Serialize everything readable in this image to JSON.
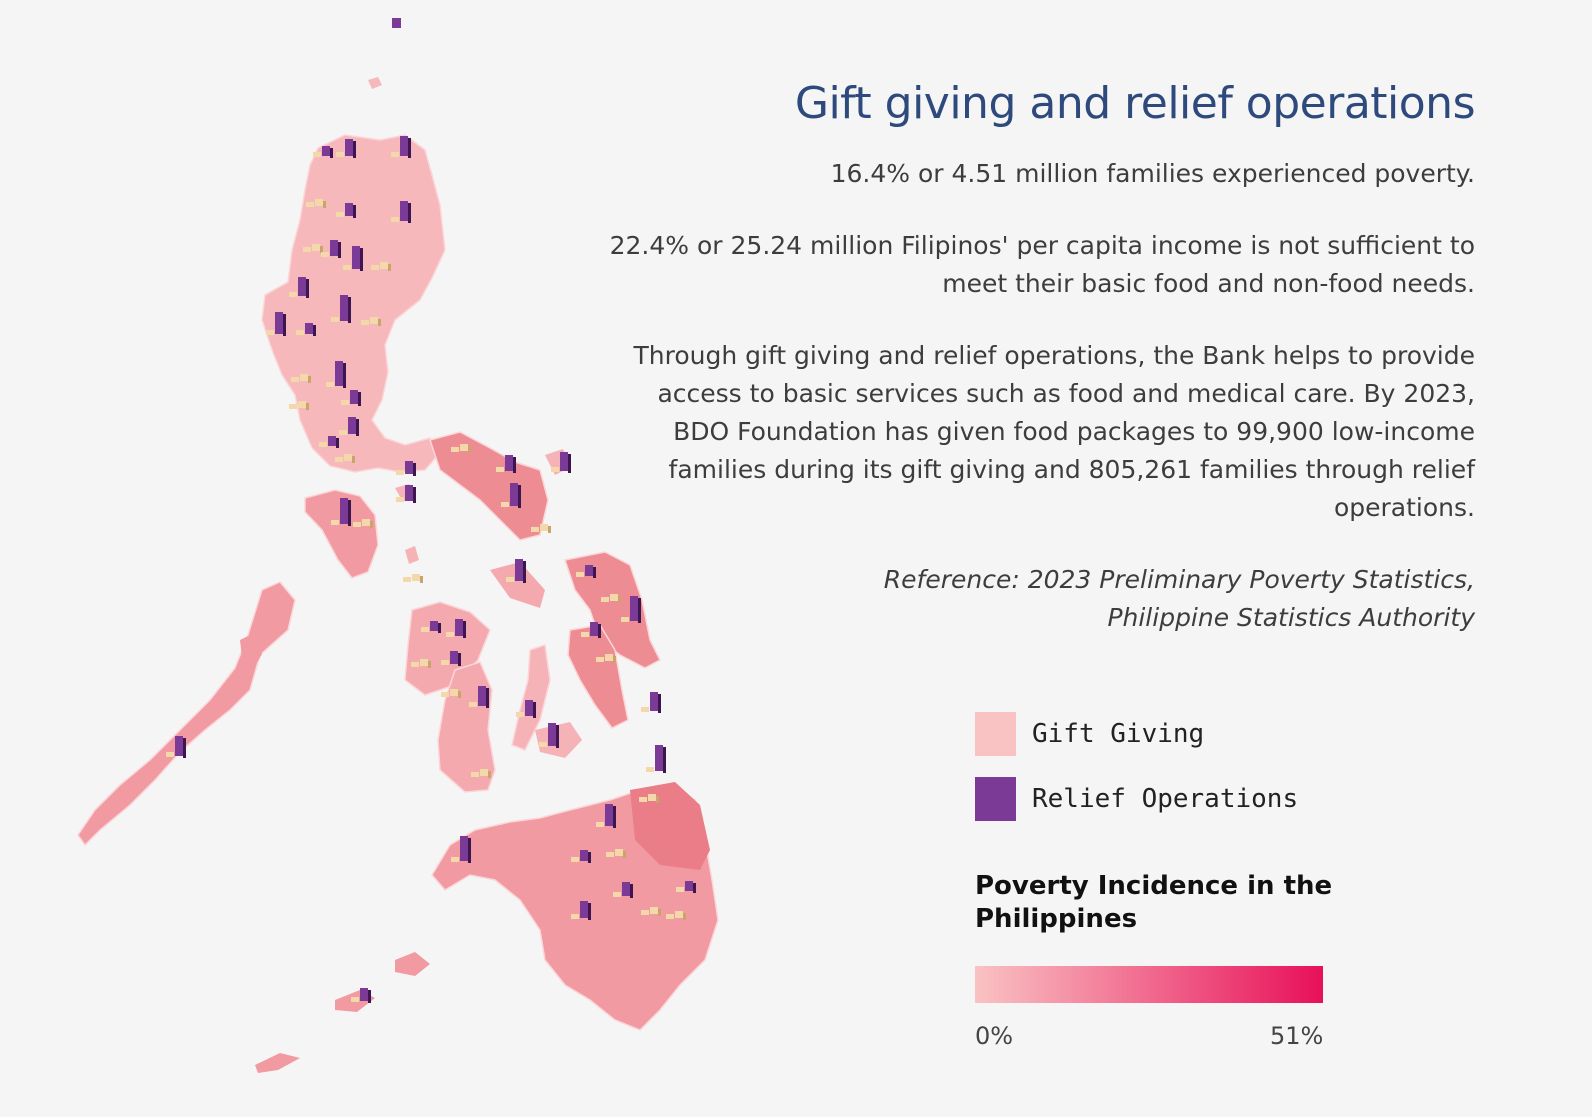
{
  "title": "Gift giving and relief operations",
  "paragraphs": [
    "16.4% or 4.51 million families experienced poverty.",
    "22.4% or 25.24 million Filipinos' per capita income is not sufficient to meet their basic food and non-food needs.",
    "Through gift giving and relief operations, the Bank helps to provide access to basic services such as food and medical care. By 2023, BDO Foundation has given food packages to 99,900 low-income families during its gift giving and 805,261 families through relief operations."
  ],
  "reference": "Reference: 2023 Preliminary Poverty Statistics, Philippine Statistics Authority",
  "legend": [
    {
      "label": "Gift Giving",
      "color": "#f9c3c3"
    },
    {
      "label": "Relief Operations",
      "color": "#7a3a96"
    }
  ],
  "scale": {
    "title": "Poverty Incidence in the Philippines",
    "min_label": "0%",
    "max_label": "51%",
    "color_low": "#f9c3c3",
    "color_high": "#e8105a"
  }
}
